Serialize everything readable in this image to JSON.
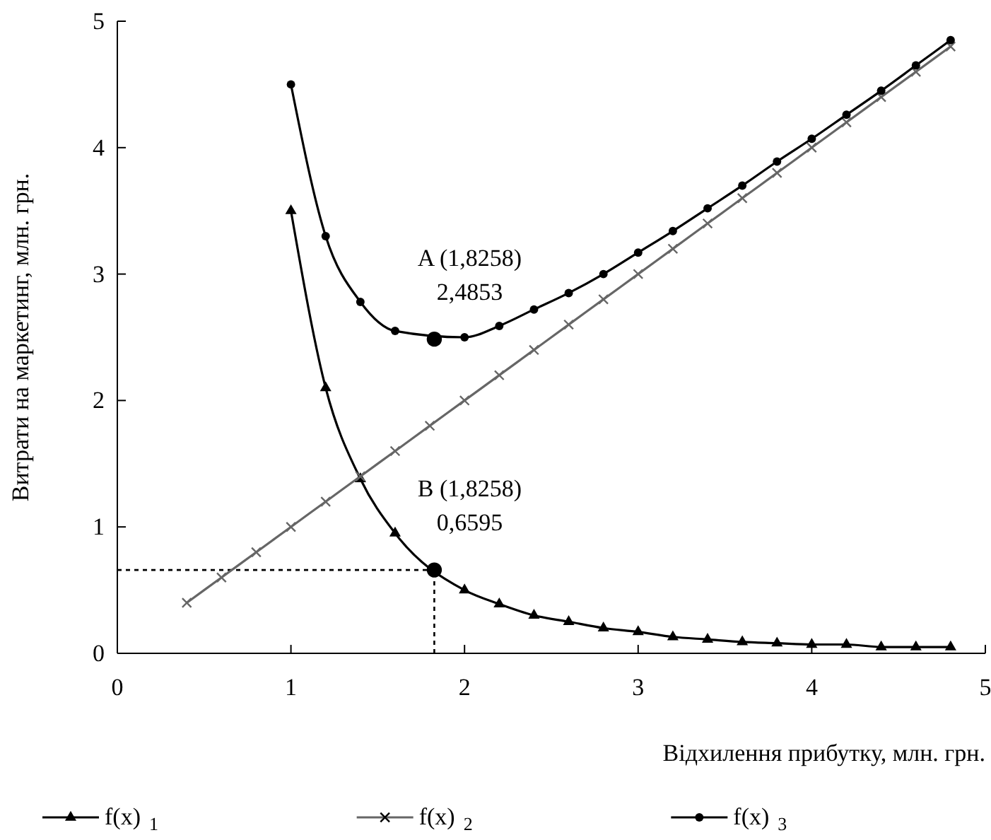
{
  "chart_data": {
    "type": "line",
    "xlabel": "Відхилення прибутку, млн. грн.",
    "ylabel": "Витрати на маркетинг, млн. грн.",
    "xlim": [
      0,
      5
    ],
    "xticks": [
      0,
      1,
      2,
      3,
      4,
      5
    ],
    "ylim": [
      0,
      5
    ],
    "yticks": [
      0,
      1,
      2,
      3,
      4,
      5
    ],
    "grid": false,
    "legend": "bottom",
    "line_style": "solid",
    "series": [
      {
        "name": "f(x)$_{1}$",
        "color": "#000000",
        "marker": "triangle",
        "x": [
          1,
          1.2,
          1.4,
          1.6,
          1.8,
          2,
          2.2,
          2.4,
          2.6,
          2.8,
          3,
          3.2,
          3.4,
          3.6,
          3.8,
          4,
          4.2,
          4.4,
          4.6,
          4.8
        ],
        "values": [
          3.5,
          2.1,
          1.38,
          0.95,
          null,
          0.5,
          0.39,
          0.3,
          0.25,
          0.2,
          0.17,
          0.13,
          0.11,
          0.09,
          0.08,
          0.07,
          0.07,
          0.05,
          0.05,
          0.05
        ]
      },
      {
        "name": "f(x)$_{2}$",
        "color": "#666666",
        "marker": "cross",
        "x": [
          0.4,
          0.6,
          0.8,
          1,
          1.2,
          1.4,
          1.6,
          1.8,
          2,
          2.2,
          2.4,
          2.6,
          2.8,
          3,
          3.2,
          3.4,
          3.6,
          3.8,
          4,
          4.2,
          4.4,
          4.6,
          4.8
        ],
        "values": [
          0.4,
          0.6,
          0.8,
          1,
          1.2,
          1.4,
          1.6,
          1.8,
          2,
          2.2,
          2.4,
          2.6,
          2.8,
          3,
          3.2,
          3.4,
          3.6,
          3.8,
          4,
          4.2,
          4.4,
          4.6,
          4.8
        ]
      },
      {
        "name": "f(x)$_{3}$",
        "color": "#000000",
        "marker": "circle",
        "x": [
          1,
          1.2,
          1.4,
          1.6,
          1.8,
          2,
          2.2,
          2.4,
          2.6,
          2.8,
          3,
          3.2,
          3.4,
          3.6,
          3.8,
          4,
          4.2,
          4.4,
          4.6,
          4.8
        ],
        "values": [
          4.5,
          3.3,
          2.78,
          2.55,
          null,
          2.5,
          2.59,
          2.72,
          2.85,
          3.0,
          3.17,
          3.34,
          3.52,
          3.7,
          3.89,
          4.07,
          4.26,
          4.45,
          4.65,
          4.85
        ]
      },
      {
        "type": "scatter",
        "color": "#000000",
        "marker": "circle",
        "x": [
          1.8258,
          1.8258
        ],
        "values": [
          2.4853,
          0.6595
        ]
      }
    ],
    "ref_lines": [
      {
        "axis": "x",
        "value": 1.8258,
        "line_style": "dotted"
      },
      {
        "axis": "y",
        "value": 0.6595,
        "line_style": "dotted"
      }
    ],
    "annotations": [
      {
        "text": "A (1,8258)\n2,4853",
        "x": 1.8258,
        "y": 2.4853
      },
      {
        "text": "B (1,8258)\n0,6595",
        "x": 1.8258,
        "y": 0.6595
      }
    ]
  }
}
